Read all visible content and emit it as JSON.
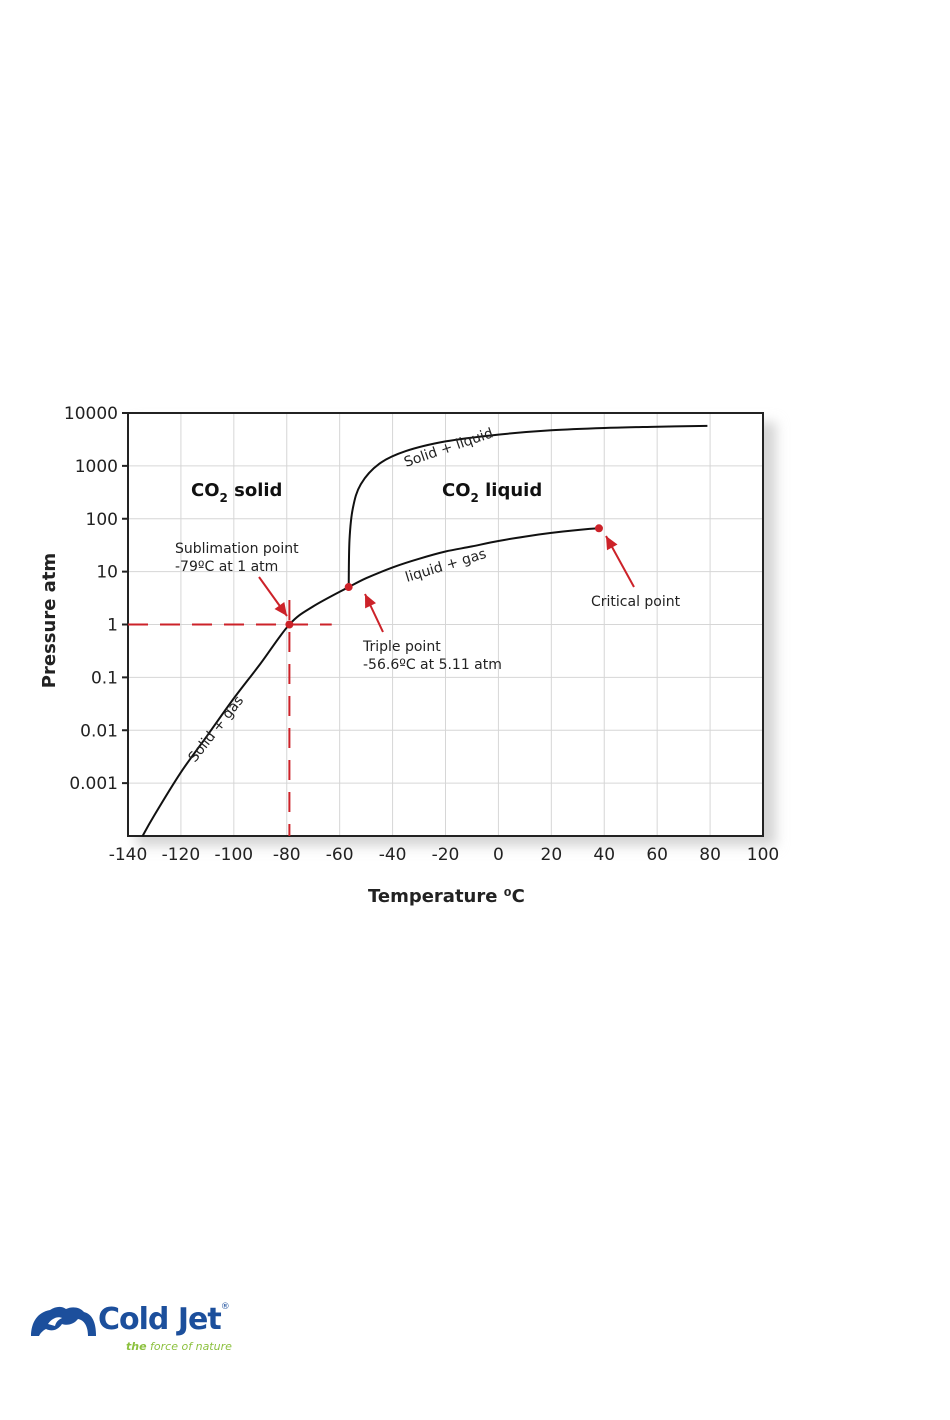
{
  "chart_data": {
    "type": "line",
    "title": "",
    "xlabel": "Temperature",
    "xlabel_unit": "⁰C",
    "ylabel": "Pressure  atm",
    "y_scale": "log",
    "xlim": [
      -140,
      100
    ],
    "ylim": [
      0.0001,
      10000
    ],
    "x_ticks": [
      -140,
      -120,
      -100,
      -80,
      -60,
      -40,
      -20,
      0,
      20,
      40,
      60,
      80,
      100
    ],
    "x_tick_labels": [
      "-140",
      "-120",
      "-100",
      "-80",
      "-60",
      "-40",
      "-20",
      "0",
      "20",
      "40",
      "60",
      "80",
      "100"
    ],
    "y_ticks": [
      0.001,
      0.01,
      0.1,
      1,
      10,
      100,
      1000,
      10000
    ],
    "y_tick_labels": [
      "0.001",
      "0.01",
      "0.1",
      "1",
      "10",
      "100",
      "1000",
      "10000"
    ],
    "grid": true,
    "series": [
      {
        "label": "Solid + gas",
        "color": "#111111",
        "x": [
          -134.5,
          -130,
          -120,
          -110,
          -100,
          -90,
          -79,
          -70,
          -56.6
        ],
        "y": [
          0.0001,
          0.00025,
          0.0016,
          0.008,
          0.04,
          0.18,
          1.0,
          2.2,
          5.11
        ]
      },
      {
        "label": "liquid + gas",
        "color": "#111111",
        "x": [
          -56.6,
          -50,
          -40,
          -30,
          -20,
          -10,
          0,
          10,
          20,
          31,
          38
        ],
        "y": [
          5.11,
          7.5,
          12,
          17.5,
          24,
          30,
          38,
          46,
          54,
          62,
          66
        ]
      },
      {
        "label": "Solid + liquid",
        "color": "#111111",
        "x": [
          -56.6,
          -56.3,
          -55,
          -52,
          -45,
          -35,
          -20,
          0,
          20,
          40,
          60,
          79
        ],
        "y": [
          5.11,
          40,
          160,
          450,
          1100,
          1900,
          2900,
          3900,
          4700,
          5200,
          5500,
          5700
        ]
      }
    ],
    "points": [
      {
        "name": "Sublimation point",
        "label_lines": [
          "Sublimation point",
          "-79ºC at 1 atm"
        ],
        "x": -79,
        "y": 1,
        "color": "#cc2229"
      },
      {
        "name": "Triple point",
        "label_lines": [
          "Triple point",
          "-56.6ºC at  5.11 atm"
        ],
        "x": -56.6,
        "y": 5.11,
        "color": "#cc2229"
      },
      {
        "name": "Critical point",
        "label_lines": [
          "Critical point"
        ],
        "x": 38,
        "y": 66,
        "color": "#cc2229"
      }
    ],
    "reference_lines": [
      {
        "orientation": "horizontal",
        "y": 1,
        "color": "#cc2229",
        "style": "dashed"
      },
      {
        "orientation": "vertical",
        "x": -79,
        "color": "#cc2229",
        "style": "dashed"
      }
    ],
    "regions": [
      {
        "text": "CO",
        "sub": "2",
        "tail": " solid"
      },
      {
        "text": "CO",
        "sub": "2",
        "tail": " liquid"
      }
    ]
  },
  "logo": {
    "brand": "Cold Jet",
    "registered": "®",
    "tagline_lead": "the",
    "tagline_rest": " force of nature",
    "primary_color": "#1c4f9c",
    "accent_color": "#8cc13f"
  }
}
